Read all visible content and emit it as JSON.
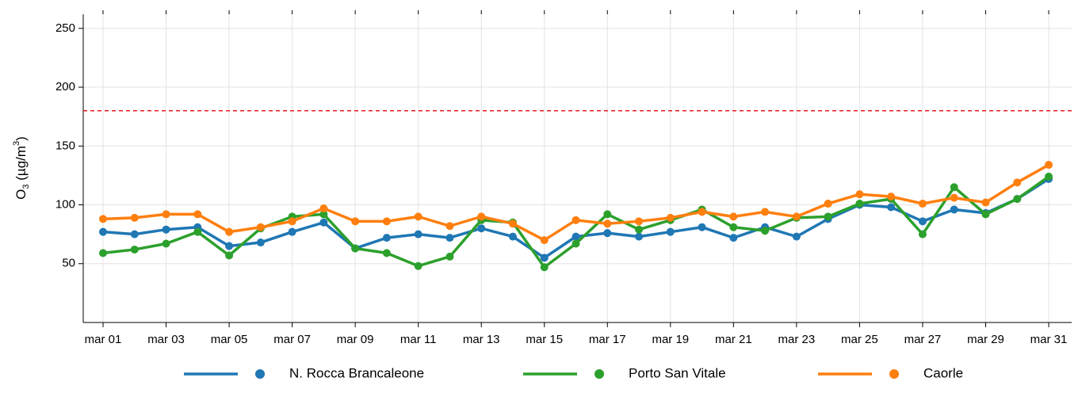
{
  "chart_data": {
    "type": "line",
    "ylabel_parts": [
      "O",
      "3",
      " (µg/m",
      "3",
      ")"
    ],
    "categories": [
      "mar 01",
      null,
      "mar 03",
      null,
      "mar 05",
      null,
      "mar 07",
      null,
      "mar 09",
      null,
      "mar 11",
      null,
      "mar 13",
      null,
      "mar 15",
      null,
      "mar 17",
      null,
      "mar 19",
      null,
      "mar 21",
      null,
      "mar 23",
      null,
      "mar 25",
      null,
      "mar 27",
      null,
      "mar 29",
      null,
      "mar 31"
    ],
    "series": [
      {
        "name": "N. Rocca Brancaleone",
        "color": "#1f77b4",
        "values": [
          77,
          75,
          79,
          81,
          65,
          68,
          77,
          85,
          63,
          72,
          75,
          72,
          80,
          73,
          55,
          73,
          76,
          73,
          77,
          81,
          72,
          81,
          73,
          88,
          100,
          98,
          86,
          96,
          93,
          105,
          122
        ]
      },
      {
        "name": "Porto San Vitale",
        "color": "#2ca02c",
        "values": [
          59,
          62,
          67,
          77,
          57,
          80,
          90,
          92,
          63,
          59,
          48,
          56,
          87,
          85,
          47,
          67,
          92,
          79,
          87,
          96,
          81,
          78,
          89,
          90,
          101,
          105,
          75,
          115,
          92,
          105,
          124
        ]
      },
      {
        "name": "Caorle",
        "color": "#ff7f0e",
        "values": [
          88,
          89,
          92,
          92,
          77,
          81,
          86,
          97,
          86,
          86,
          90,
          82,
          90,
          84,
          70,
          87,
          84,
          86,
          89,
          94,
          90,
          94,
          90,
          101,
          109,
          107,
          101,
          106,
          102,
          119,
          134
        ]
      }
    ],
    "threshold": 180,
    "threshold_color": "#e8191c",
    "ylim": [
      0,
      262
    ],
    "yticks": [
      50,
      100,
      150,
      200,
      250
    ],
    "grid": true
  }
}
